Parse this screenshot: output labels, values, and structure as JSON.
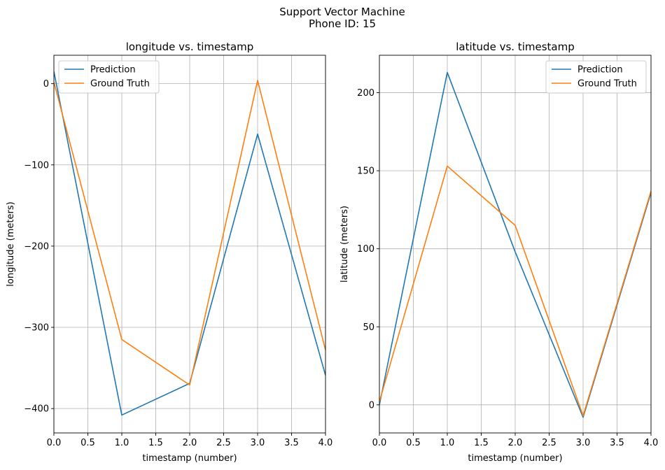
{
  "figure": {
    "suptitle_line1": "Support Vector Machine",
    "suptitle_line2": "Phone ID: 15"
  },
  "chart_data": [
    {
      "type": "line",
      "title": "longitude vs. timestamp",
      "xlabel": "timestamp (number)",
      "ylabel": "longitude (meters)",
      "xlim": [
        0,
        4
      ],
      "ylim": [
        -430,
        35
      ],
      "xticks": [
        0,
        0.5,
        1,
        1.5,
        2,
        2.5,
        3,
        3.5,
        4
      ],
      "xtick_labels": [
        "0.0",
        "0.5",
        "1.0",
        "1.5",
        "2.0",
        "2.5",
        "3.0",
        "3.5",
        "4.0"
      ],
      "yticks": [
        0,
        -100,
        -200,
        -300,
        -400
      ],
      "ytick_labels": [
        "0",
        "−100",
        "−200",
        "−300",
        "−400"
      ],
      "grid": true,
      "legend_position": "top-left",
      "series": [
        {
          "name": "Prediction",
          "color": "#1f77b4",
          "x": [
            0,
            1,
            2,
            3,
            4
          ],
          "y": [
            15,
            -408,
            -369,
            -62,
            -359
          ]
        },
        {
          "name": "Ground Truth",
          "color": "#ff7f0e",
          "x": [
            0,
            1,
            2,
            3,
            4
          ],
          "y": [
            2,
            -315,
            -371,
            4,
            -328
          ]
        }
      ]
    },
    {
      "type": "line",
      "title": "latitude vs. timestamp",
      "xlabel": "timestamp (number)",
      "ylabel": "latitude (meters)",
      "xlim": [
        0,
        4
      ],
      "ylim": [
        -18,
        224
      ],
      "xticks": [
        0,
        0.5,
        1,
        1.5,
        2,
        2.5,
        3,
        3.5,
        4
      ],
      "xtick_labels": [
        "0.0",
        "0.5",
        "1.0",
        "1.5",
        "2.0",
        "2.5",
        "3.0",
        "3.5",
        "4.0"
      ],
      "yticks": [
        0,
        50,
        100,
        150,
        200
      ],
      "ytick_labels": [
        "0",
        "50",
        "100",
        "150",
        "200"
      ],
      "grid": true,
      "legend_position": "top-right",
      "series": [
        {
          "name": "Prediction",
          "color": "#1f77b4",
          "x": [
            0,
            1,
            2,
            3,
            4
          ],
          "y": [
            0,
            213,
            98,
            -8,
            136
          ]
        },
        {
          "name": "Ground Truth",
          "color": "#ff7f0e",
          "x": [
            0,
            1,
            2,
            3,
            4
          ],
          "y": [
            2,
            153,
            115,
            -7,
            137
          ]
        }
      ]
    }
  ]
}
